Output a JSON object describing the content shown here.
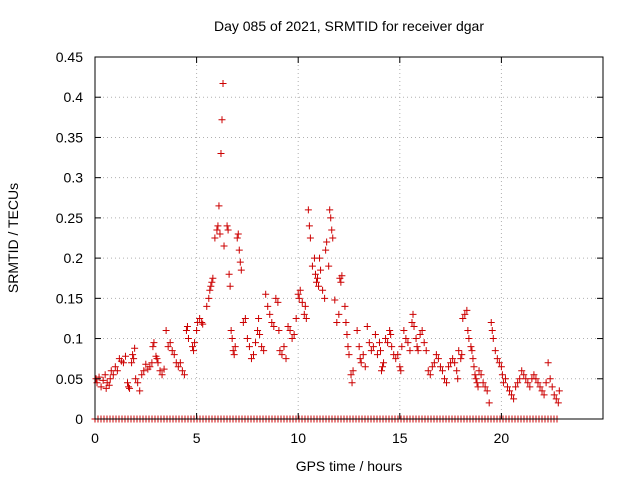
{
  "chart_data": {
    "type": "scatter",
    "title": "Day 085 of 2021, SRMTID for receiver dgar",
    "xlabel": "GPS time / hours",
    "ylabel": "SRMTID / TECUs",
    "xlim": [
      0,
      25
    ],
    "ylim": [
      0,
      0.45
    ],
    "grid": true,
    "marker": "+",
    "color": "#cc0000",
    "xticks": [
      0,
      5,
      10,
      15,
      20
    ],
    "xtick_labels": [
      "0",
      "5",
      "10",
      "15",
      "20"
    ],
    "yticks": [
      0,
      0.05,
      0.1,
      0.15,
      0.2,
      0.25,
      0.3,
      0.35,
      0.4,
      0.45
    ],
    "ytick_labels": [
      "0",
      "0.05",
      "0.1",
      "0.15",
      "0.2",
      "0.25",
      "0.3",
      "0.35",
      "0.4",
      "0.45"
    ],
    "zero_baseline": {
      "x_start": 0,
      "x_end": 22.8,
      "y": 0
    },
    "series": [
      {
        "name": "SRMTID",
        "points": [
          [
            0.05,
            0.05
          ],
          [
            0.1,
            0.045
          ],
          [
            0.2,
            0.052
          ],
          [
            0.3,
            0.04
          ],
          [
            0.4,
            0.048
          ],
          [
            0.5,
            0.055
          ],
          [
            0.55,
            0.038
          ],
          [
            0.6,
            0.045
          ],
          [
            0.7,
            0.042
          ],
          [
            0.75,
            0.05
          ],
          [
            0.8,
            0.06
          ],
          [
            0.9,
            0.055
          ],
          [
            1.0,
            0.065
          ],
          [
            1.1,
            0.06
          ],
          [
            1.2,
            0.075
          ],
          [
            1.3,
            0.072
          ],
          [
            1.4,
            0.07
          ],
          [
            1.5,
            0.078
          ],
          [
            1.6,
            0.045
          ],
          [
            1.65,
            0.04
          ],
          [
            1.7,
            0.038
          ],
          [
            1.8,
            0.07
          ],
          [
            1.85,
            0.08
          ],
          [
            1.9,
            0.075
          ],
          [
            1.95,
            0.088
          ],
          [
            2.0,
            0.05
          ],
          [
            2.1,
            0.045
          ],
          [
            2.2,
            0.035
          ],
          [
            2.3,
            0.055
          ],
          [
            2.4,
            0.06
          ],
          [
            2.5,
            0.068
          ],
          [
            2.6,
            0.062
          ],
          [
            2.7,
            0.065
          ],
          [
            2.8,
            0.07
          ],
          [
            2.85,
            0.09
          ],
          [
            2.9,
            0.095
          ],
          [
            3.0,
            0.078
          ],
          [
            3.05,
            0.075
          ],
          [
            3.1,
            0.07
          ],
          [
            3.2,
            0.06
          ],
          [
            3.3,
            0.055
          ],
          [
            3.4,
            0.062
          ],
          [
            3.5,
            0.11
          ],
          [
            3.6,
            0.09
          ],
          [
            3.7,
            0.095
          ],
          [
            3.8,
            0.085
          ],
          [
            3.9,
            0.08
          ],
          [
            4.0,
            0.07
          ],
          [
            4.1,
            0.065
          ],
          [
            4.2,
            0.07
          ],
          [
            4.3,
            0.06
          ],
          [
            4.4,
            0.055
          ],
          [
            4.5,
            0.11
          ],
          [
            4.55,
            0.115
          ],
          [
            4.6,
            0.1
          ],
          [
            4.8,
            0.09
          ],
          [
            4.85,
            0.085
          ],
          [
            4.9,
            0.095
          ],
          [
            5.0,
            0.11
          ],
          [
            5.05,
            0.12
          ],
          [
            5.15,
            0.125
          ],
          [
            5.25,
            0.12
          ],
          [
            5.3,
            0.118
          ],
          [
            5.5,
            0.14
          ],
          [
            5.6,
            0.15
          ],
          [
            5.65,
            0.16
          ],
          [
            5.7,
            0.165
          ],
          [
            5.75,
            0.17
          ],
          [
            5.8,
            0.175
          ],
          [
            5.9,
            0.225
          ],
          [
            6.0,
            0.235
          ],
          [
            6.05,
            0.24
          ],
          [
            6.1,
            0.265
          ],
          [
            6.15,
            0.23
          ],
          [
            6.2,
            0.33
          ],
          [
            6.25,
            0.372
          ],
          [
            6.3,
            0.417
          ],
          [
            6.35,
            0.215
          ],
          [
            6.5,
            0.24
          ],
          [
            6.55,
            0.235
          ],
          [
            6.6,
            0.18
          ],
          [
            6.65,
            0.165
          ],
          [
            6.7,
            0.11
          ],
          [
            6.75,
            0.1
          ],
          [
            6.8,
            0.085
          ],
          [
            6.85,
            0.08
          ],
          [
            6.9,
            0.09
          ],
          [
            7.0,
            0.225
          ],
          [
            7.05,
            0.23
          ],
          [
            7.1,
            0.21
          ],
          [
            7.15,
            0.195
          ],
          [
            7.2,
            0.185
          ],
          [
            7.3,
            0.12
          ],
          [
            7.4,
            0.125
          ],
          [
            7.5,
            0.1
          ],
          [
            7.6,
            0.09
          ],
          [
            7.7,
            0.075
          ],
          [
            7.8,
            0.08
          ],
          [
            7.9,
            0.095
          ],
          [
            8.0,
            0.11
          ],
          [
            8.05,
            0.125
          ],
          [
            8.1,
            0.105
          ],
          [
            8.2,
            0.09
          ],
          [
            8.3,
            0.085
          ],
          [
            8.4,
            0.155
          ],
          [
            8.5,
            0.14
          ],
          [
            8.6,
            0.13
          ],
          [
            8.7,
            0.12
          ],
          [
            8.8,
            0.115
          ],
          [
            8.9,
            0.15
          ],
          [
            9.0,
            0.145
          ],
          [
            9.05,
            0.11
          ],
          [
            9.1,
            0.085
          ],
          [
            9.2,
            0.08
          ],
          [
            9.3,
            0.09
          ],
          [
            9.4,
            0.075
          ],
          [
            9.5,
            0.115
          ],
          [
            9.6,
            0.11
          ],
          [
            9.7,
            0.1
          ],
          [
            9.8,
            0.105
          ],
          [
            9.9,
            0.125
          ],
          [
            10.0,
            0.155
          ],
          [
            10.05,
            0.15
          ],
          [
            10.1,
            0.16
          ],
          [
            10.2,
            0.145
          ],
          [
            10.3,
            0.13
          ],
          [
            10.35,
            0.14
          ],
          [
            10.4,
            0.125
          ],
          [
            10.5,
            0.26
          ],
          [
            10.55,
            0.24
          ],
          [
            10.6,
            0.225
          ],
          [
            10.7,
            0.19
          ],
          [
            10.8,
            0.2
          ],
          [
            10.85,
            0.18
          ],
          [
            10.9,
            0.17
          ],
          [
            10.95,
            0.175
          ],
          [
            11.0,
            0.165
          ],
          [
            11.05,
            0.2
          ],
          [
            11.1,
            0.185
          ],
          [
            11.2,
            0.16
          ],
          [
            11.3,
            0.15
          ],
          [
            11.35,
            0.21
          ],
          [
            11.4,
            0.22
          ],
          [
            11.5,
            0.19
          ],
          [
            11.55,
            0.26
          ],
          [
            11.6,
            0.25
          ],
          [
            11.65,
            0.235
          ],
          [
            11.7,
            0.225
          ],
          [
            11.8,
            0.148
          ],
          [
            11.9,
            0.12
          ],
          [
            12.0,
            0.13
          ],
          [
            12.05,
            0.175
          ],
          [
            12.1,
            0.17
          ],
          [
            12.15,
            0.178
          ],
          [
            12.3,
            0.14
          ],
          [
            12.35,
            0.12
          ],
          [
            12.4,
            0.105
          ],
          [
            12.45,
            0.09
          ],
          [
            12.5,
            0.08
          ],
          [
            12.6,
            0.055
          ],
          [
            12.65,
            0.045
          ],
          [
            12.7,
            0.06
          ],
          [
            12.9,
            0.11
          ],
          [
            13.0,
            0.09
          ],
          [
            13.05,
            0.075
          ],
          [
            13.1,
            0.07
          ],
          [
            13.2,
            0.08
          ],
          [
            13.3,
            0.065
          ],
          [
            13.4,
            0.115
          ],
          [
            13.5,
            0.095
          ],
          [
            13.6,
            0.085
          ],
          [
            13.7,
            0.09
          ],
          [
            13.8,
            0.105
          ],
          [
            13.9,
            0.08
          ],
          [
            14.0,
            0.095
          ],
          [
            14.05,
            0.085
          ],
          [
            14.1,
            0.06
          ],
          [
            14.15,
            0.065
          ],
          [
            14.2,
            0.07
          ],
          [
            14.3,
            0.1
          ],
          [
            14.4,
            0.095
          ],
          [
            14.5,
            0.11
          ],
          [
            14.55,
            0.105
          ],
          [
            14.6,
            0.09
          ],
          [
            14.7,
            0.08
          ],
          [
            14.8,
            0.075
          ],
          [
            14.9,
            0.08
          ],
          [
            15.0,
            0.065
          ],
          [
            15.05,
            0.06
          ],
          [
            15.1,
            0.09
          ],
          [
            15.2,
            0.11
          ],
          [
            15.3,
            0.1
          ],
          [
            15.4,
            0.095
          ],
          [
            15.5,
            0.085
          ],
          [
            15.6,
            0.12
          ],
          [
            15.65,
            0.13
          ],
          [
            15.7,
            0.115
          ],
          [
            15.8,
            0.1
          ],
          [
            15.85,
            0.09
          ],
          [
            15.9,
            0.085
          ],
          [
            16.0,
            0.105
          ],
          [
            16.1,
            0.11
          ],
          [
            16.2,
            0.095
          ],
          [
            16.3,
            0.085
          ],
          [
            16.4,
            0.06
          ],
          [
            16.5,
            0.055
          ],
          [
            16.6,
            0.065
          ],
          [
            16.7,
            0.07
          ],
          [
            16.8,
            0.08
          ],
          [
            16.9,
            0.075
          ],
          [
            17.0,
            0.065
          ],
          [
            17.1,
            0.06
          ],
          [
            17.2,
            0.05
          ],
          [
            17.3,
            0.045
          ],
          [
            17.4,
            0.065
          ],
          [
            17.5,
            0.07
          ],
          [
            17.6,
            0.075
          ],
          [
            17.7,
            0.07
          ],
          [
            17.8,
            0.06
          ],
          [
            17.85,
            0.05
          ],
          [
            17.9,
            0.085
          ],
          [
            18.0,
            0.075
          ],
          [
            18.05,
            0.08
          ],
          [
            18.1,
            0.125
          ],
          [
            18.2,
            0.13
          ],
          [
            18.3,
            0.135
          ],
          [
            18.35,
            0.11
          ],
          [
            18.4,
            0.1
          ],
          [
            18.5,
            0.09
          ],
          [
            18.55,
            0.085
          ],
          [
            18.6,
            0.075
          ],
          [
            18.65,
            0.065
          ],
          [
            18.7,
            0.055
          ],
          [
            18.75,
            0.05
          ],
          [
            18.8,
            0.045
          ],
          [
            18.85,
            0.04
          ],
          [
            18.9,
            0.06
          ],
          [
            19.0,
            0.055
          ],
          [
            19.1,
            0.045
          ],
          [
            19.2,
            0.04
          ],
          [
            19.3,
            0.035
          ],
          [
            19.4,
            0.02
          ],
          [
            19.5,
            0.12
          ],
          [
            19.55,
            0.11
          ],
          [
            19.6,
            0.1
          ],
          [
            19.7,
            0.085
          ],
          [
            19.8,
            0.075
          ],
          [
            19.9,
            0.07
          ],
          [
            20.0,
            0.065
          ],
          [
            20.05,
            0.055
          ],
          [
            20.1,
            0.045
          ],
          [
            20.2,
            0.05
          ],
          [
            20.3,
            0.04
          ],
          [
            20.4,
            0.035
          ],
          [
            20.5,
            0.03
          ],
          [
            20.6,
            0.025
          ],
          [
            20.7,
            0.04
          ],
          [
            20.8,
            0.045
          ],
          [
            20.9,
            0.05
          ],
          [
            21.0,
            0.06
          ],
          [
            21.1,
            0.055
          ],
          [
            21.2,
            0.05
          ],
          [
            21.3,
            0.045
          ],
          [
            21.4,
            0.04
          ],
          [
            21.5,
            0.05
          ],
          [
            21.6,
            0.055
          ],
          [
            21.7,
            0.05
          ],
          [
            21.8,
            0.045
          ],
          [
            21.9,
            0.04
          ],
          [
            22.0,
            0.035
          ],
          [
            22.1,
            0.03
          ],
          [
            22.2,
            0.045
          ],
          [
            22.3,
            0.07
          ],
          [
            22.4,
            0.05
          ],
          [
            22.5,
            0.04
          ],
          [
            22.6,
            0.03
          ],
          [
            22.7,
            0.025
          ],
          [
            22.8,
            0.02
          ],
          [
            22.85,
            0.035
          ]
        ]
      }
    ]
  }
}
